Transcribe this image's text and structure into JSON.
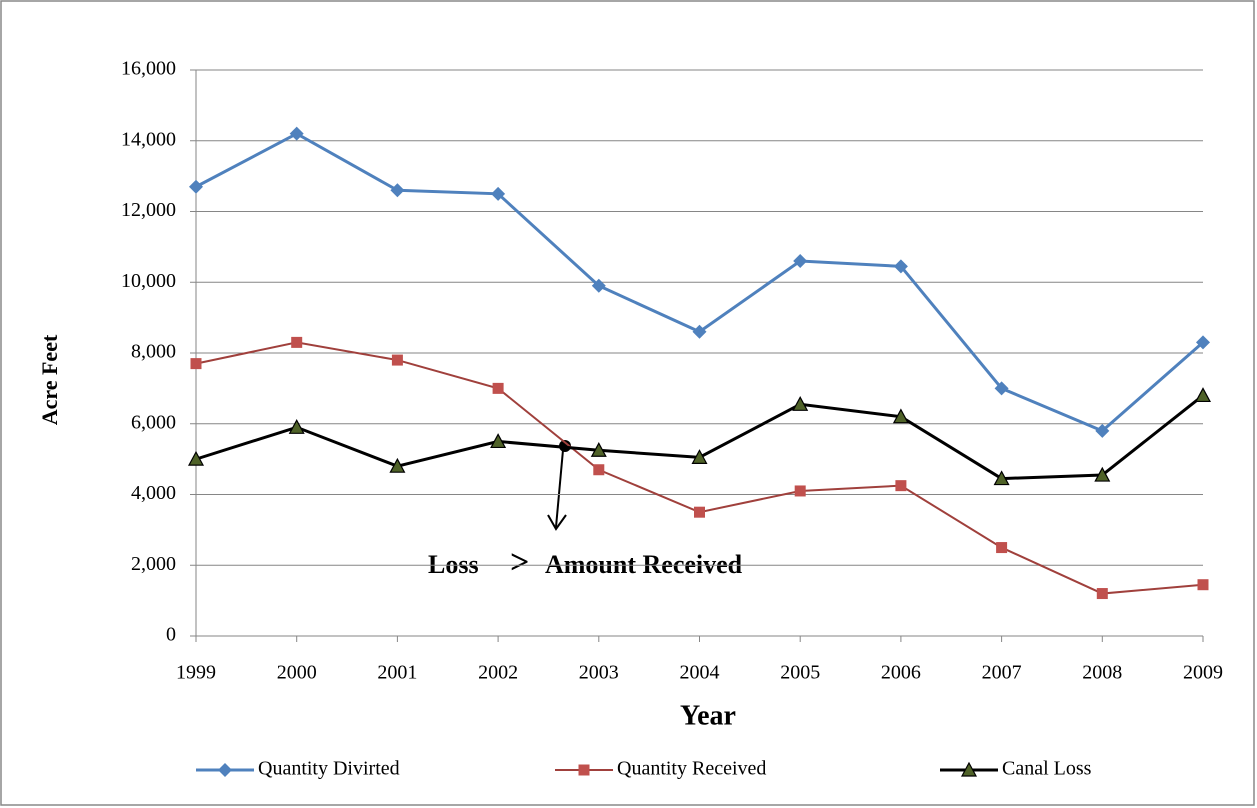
{
  "chart_data": {
    "type": "line",
    "x_label": "Year",
    "y_label": "Acre Feet",
    "categories": [
      "1999",
      "2000",
      "2001",
      "2002",
      "2003",
      "2004",
      "2005",
      "2006",
      "2007",
      "2008",
      "2009"
    ],
    "series": [
      {
        "name": "Quantity Divirted",
        "color": "#4f81bd",
        "marker": "diamond",
        "values": [
          12700,
          14200,
          12600,
          12500,
          9900,
          8600,
          10600,
          10450,
          7000,
          5800,
          8300
        ]
      },
      {
        "name": "Quantity Received",
        "color": "#c0504d",
        "marker": "square",
        "values": [
          7700,
          8300,
          7800,
          7000,
          4700,
          3500,
          4100,
          4250,
          2500,
          1200,
          1450
        ]
      },
      {
        "name": "Canal Loss",
        "color": "#000000",
        "marker": "triangle",
        "values": [
          5000,
          5900,
          4800,
          5500,
          5250,
          5050,
          6550,
          6200,
          4450,
          4550,
          6800
        ]
      }
    ],
    "ylim": [
      0,
      16000
    ],
    "yticks": [
      0,
      {
        "value": 2000,
        "label": "2,000"
      },
      {
        "value": 4000,
        "label": "4,000"
      },
      {
        "value": 6000,
        "label": "6,000"
      },
      {
        "value": 8000,
        "label": "8,000"
      },
      {
        "value": 10000,
        "label": "10,000"
      },
      {
        "value": 12000,
        "label": "12,000"
      },
      {
        "value": 14000,
        "label": "14,000"
      },
      {
        "value": 16000,
        "label": "16,000"
      }
    ],
    "grid": true,
    "legend": "bottom",
    "annotation": [
      "Loss",
      ">",
      "Amount Received"
    ]
  }
}
